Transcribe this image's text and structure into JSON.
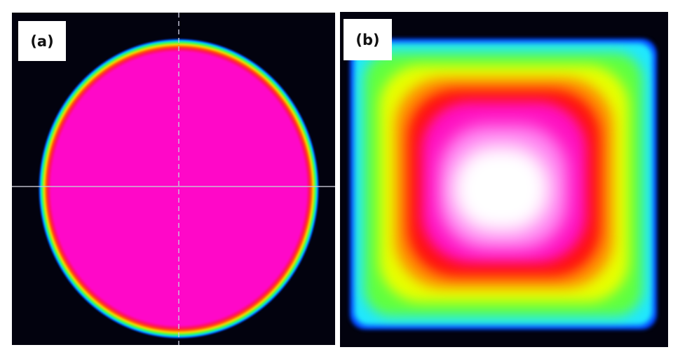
{
  "panels": [
    {
      "label": "(a)",
      "shape": "circular flat-top beam profile"
    },
    {
      "label": "(b)",
      "shape": "square beam profile"
    }
  ],
  "colors": {
    "background": "#02020e",
    "core_a": "#ff08c8",
    "core_b": "#ffffff"
  }
}
